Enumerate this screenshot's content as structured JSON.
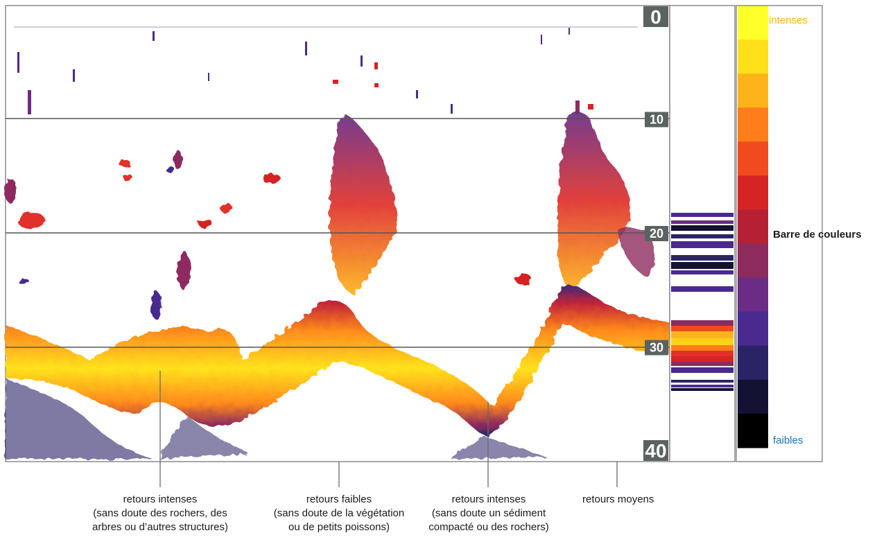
{
  "depth_scale": {
    "ticks": [
      "0",
      "10",
      "20",
      "30",
      "40"
    ]
  },
  "color_bar": {
    "title": "Barre de couleurs",
    "top_label": "intenses",
    "bottom_label": "faibles",
    "top_label_color": "#f2b705",
    "bottom_label_color": "#1a6fb5",
    "gradient": [
      "#ffff2a",
      "#ffe019",
      "#ffb31a",
      "#ff7d1a",
      "#f04a1e",
      "#d62424",
      "#b52035",
      "#8e2b5e",
      "#6a2c85",
      "#4a2a8e",
      "#2a2466",
      "#141233",
      "#000000"
    ]
  },
  "callouts": [
    {
      "line1": "retours intenses",
      "line2": "(sans doute des rochers, des",
      "line3": "arbres ou d’autres structures)"
    },
    {
      "line1": "retours faibles",
      "line2": "(sans doute de la végétation",
      "line3": "ou de petits poissons)"
    },
    {
      "line1": "retours intenses",
      "line2": "(sans doute un sédiment",
      "line3": "compacté ou des rochers)"
    },
    {
      "line1": "retours moyens"
    }
  ],
  "colors": {
    "frame": "#8a8a8a",
    "depth_line": "#555555",
    "tick_bg": "#5b6360",
    "tick_text": "#ffffff"
  }
}
